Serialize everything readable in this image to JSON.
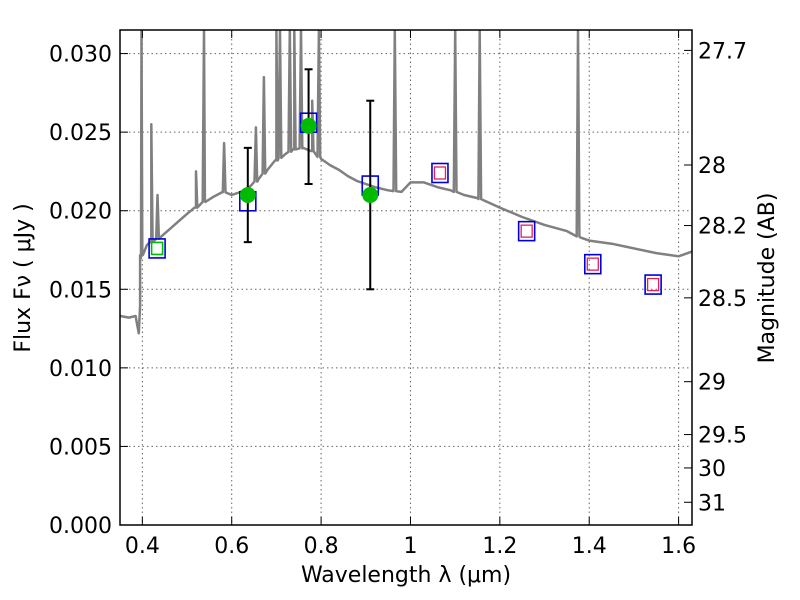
{
  "chart_data": {
    "type": "scatter",
    "title": "",
    "xlabel": "Wavelength  λ (μm)",
    "ylabel": "Flux  Fν  ( μJy )",
    "ylabel_right": "Magnitude (AB)",
    "xlim": [
      0.35,
      1.63
    ],
    "ylim": [
      0.0,
      0.0315
    ],
    "grid": true,
    "x_ticks": [
      {
        "value": 0.4,
        "label": "0.4"
      },
      {
        "value": 0.6,
        "label": "0.6"
      },
      {
        "value": 0.8,
        "label": "0.8"
      },
      {
        "value": 1.0,
        "label": "1"
      },
      {
        "value": 1.2,
        "label": "1.2"
      },
      {
        "value": 1.4,
        "label": "1.4"
      },
      {
        "value": 1.6,
        "label": "1.6"
      }
    ],
    "y_ticks": [
      {
        "value": 0.0,
        "label": "0.000"
      },
      {
        "value": 0.005,
        "label": "0.005"
      },
      {
        "value": 0.01,
        "label": "0.010"
      },
      {
        "value": 0.015,
        "label": "0.015"
      },
      {
        "value": 0.02,
        "label": "0.020"
      },
      {
        "value": 0.025,
        "label": "0.025"
      },
      {
        "value": 0.03,
        "label": "0.030"
      }
    ],
    "right_ticks": [
      {
        "value": 27.7,
        "label": "27.7"
      },
      {
        "value": 28.0,
        "label": "28"
      },
      {
        "value": 28.2,
        "label": "28.2"
      },
      {
        "value": 28.5,
        "label": "28.5"
      },
      {
        "value": 29.0,
        "label": "29"
      },
      {
        "value": 29.5,
        "label": "29.5"
      },
      {
        "value": 30.0,
        "label": "30"
      },
      {
        "value": 31.0,
        "label": "31"
      }
    ],
    "colors": {
      "spectrum": "#808080",
      "model_box": "#0000dd",
      "inner_box": "#dd2255",
      "observed": "#00bb00",
      "errorbar": "#000000",
      "grid": "#666666"
    },
    "model_spectrum": {
      "x": [
        0.35,
        0.37,
        0.385,
        0.39,
        0.392,
        0.395,
        0.397,
        0.4,
        0.41,
        0.42,
        0.44,
        0.46,
        0.48,
        0.5,
        0.52,
        0.54,
        0.56,
        0.58,
        0.6,
        0.62,
        0.64,
        0.66,
        0.68,
        0.7,
        0.72,
        0.74,
        0.76,
        0.78,
        0.8,
        0.82,
        0.84,
        0.86,
        0.88,
        0.9,
        0.92,
        0.95,
        0.98,
        1.0,
        1.03,
        1.06,
        1.09,
        1.12,
        1.15,
        1.2,
        1.25,
        1.3,
        1.35,
        1.38,
        1.4,
        1.45,
        1.5,
        1.55,
        1.6,
        1.63
      ],
      "y": [
        0.0133,
        0.0132,
        0.0133,
        0.0125,
        0.0122,
        0.014,
        0.017,
        0.0175,
        0.0178,
        0.018,
        0.0183,
        0.0188,
        0.0193,
        0.0198,
        0.0202,
        0.0206,
        0.0209,
        0.0212,
        0.021,
        0.0212,
        0.0215,
        0.022,
        0.0226,
        0.0232,
        0.0236,
        0.0239,
        0.024,
        0.0238,
        0.0233,
        0.0229,
        0.0226,
        0.0222,
        0.0219,
        0.0217,
        0.0215,
        0.0213,
        0.0212,
        0.0218,
        0.0218,
        0.0215,
        0.0213,
        0.021,
        0.0208,
        0.0202,
        0.0196,
        0.0191,
        0.0187,
        0.0183,
        0.0181,
        0.0179,
        0.0176,
        0.0173,
        0.0171,
        0.0174
      ]
    },
    "emission_lines": [
      {
        "x": 0.398,
        "peak": 0.0315
      },
      {
        "x": 0.42,
        "peak": 0.0255
      },
      {
        "x": 0.434,
        "peak": 0.021
      },
      {
        "x": 0.52,
        "peak": 0.0225
      },
      {
        "x": 0.538,
        "peak": 0.0315
      },
      {
        "x": 0.583,
        "peak": 0.0243
      },
      {
        "x": 0.654,
        "peak": 0.0253
      },
      {
        "x": 0.672,
        "peak": 0.0285
      },
      {
        "x": 0.7,
        "peak": 0.0315
      },
      {
        "x": 0.708,
        "peak": 0.0315
      },
      {
        "x": 0.73,
        "peak": 0.0315
      },
      {
        "x": 0.74,
        "peak": 0.0315
      },
      {
        "x": 0.755,
        "peak": 0.0315
      },
      {
        "x": 0.78,
        "peak": 0.027
      },
      {
        "x": 0.795,
        "peak": 0.0315
      },
      {
        "x": 0.965,
        "peak": 0.0315
      },
      {
        "x": 1.1,
        "peak": 0.0315
      },
      {
        "x": 1.155,
        "peak": 0.0315
      },
      {
        "x": 1.375,
        "peak": 0.0315
      }
    ],
    "model_photometry": [
      {
        "x": 0.433,
        "y": 0.0176
      },
      {
        "x": 0.636,
        "y": 0.0206
      },
      {
        "x": 0.772,
        "y": 0.0256
      },
      {
        "x": 0.91,
        "y": 0.0216
      },
      {
        "x": 1.066,
        "y": 0.0224
      },
      {
        "x": 1.26,
        "y": 0.0187
      },
      {
        "x": 1.408,
        "y": 0.0166
      },
      {
        "x": 1.543,
        "y": 0.0153
      }
    ],
    "upper_points": [
      {
        "x": 1.066,
        "y": 0.0224
      },
      {
        "x": 1.26,
        "y": 0.0187
      },
      {
        "x": 1.408,
        "y": 0.0166
      },
      {
        "x": 1.543,
        "y": 0.0153
      }
    ],
    "observed_points": [
      {
        "x": 0.433,
        "y": 0.0176,
        "err_low": 0.0,
        "err_high": 0.0
      },
      {
        "x": 0.636,
        "y": 0.021,
        "err_low": 0.003,
        "err_high": 0.003
      },
      {
        "x": 0.772,
        "y": 0.0254,
        "err_low": 0.0037,
        "err_high": 0.0036
      },
      {
        "x": 0.91,
        "y": 0.021,
        "err_low": 0.006,
        "err_high": 0.006
      }
    ]
  }
}
